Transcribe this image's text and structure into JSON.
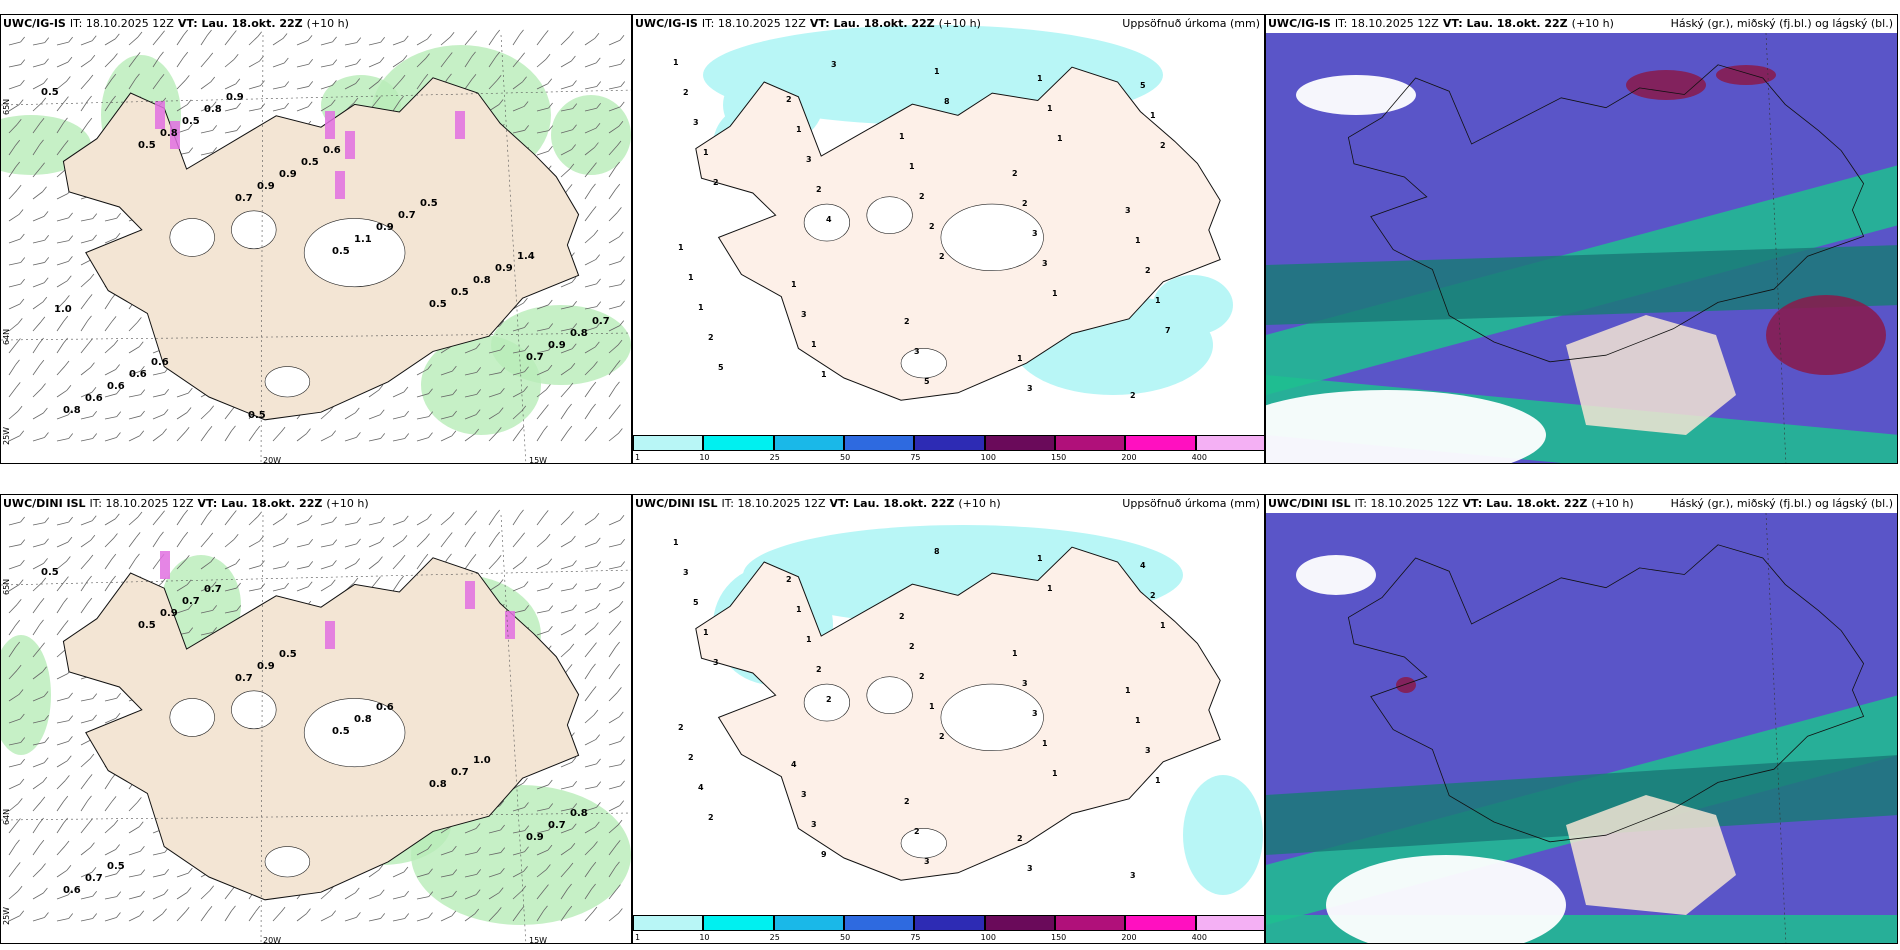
{
  "rows": [
    {
      "model": "UWC/IG-IS",
      "panels": [
        {
          "it_label": "IT: 18.10.2025 12Z",
          "vt_label": "VT: Lau. 18.okt. 22Z",
          "lead": "(+10 h)",
          "title": ""
        },
        {
          "it_label": "IT: 18.10.2025 12Z",
          "vt_label": "VT: Lau. 18.okt. 22Z",
          "lead": "(+10 h)",
          "title": "Uppsöfnuð úrkoma (mm)"
        },
        {
          "it_label": "IT: 18.10.2025 12Z",
          "vt_label": "VT: Lau. 18.okt. 22Z",
          "lead": "(+10 h)",
          "title": "Háský (gr.), miðský (fj.bl.) og lágský (bl.)"
        }
      ],
      "wind_labels": [
        "0.5",
        "0.5",
        "0.7",
        "0.5",
        "0.5",
        "0.7",
        "0.8",
        "0.8",
        "0.9",
        "1.1",
        "0.5",
        "0.9",
        "0.6",
        "0.5",
        "0.9",
        "0.9",
        "0.8",
        "0.8",
        "0.6",
        "0.8",
        "0.5",
        "0.7",
        "0.9",
        "0.7",
        "0.6",
        "0.9",
        "0.6",
        "0.5",
        "1.4",
        "1.0",
        "0.6",
        "0.5"
      ],
      "precip_labels": [
        "1",
        "2",
        "1",
        "2",
        "3",
        "1",
        "1",
        "2",
        "1",
        "2",
        "2",
        "1",
        "1",
        "2",
        "1",
        "1",
        "3",
        "3",
        "3",
        "5",
        "3",
        "3",
        "2",
        "3",
        "2",
        "1",
        "1",
        "5",
        "1",
        "1",
        "1",
        "2",
        "2",
        "3",
        "1",
        "2",
        "1",
        "1",
        "1",
        "2",
        "2",
        "4",
        "2",
        "1",
        "7",
        "5",
        "3",
        "8",
        "1"
      ]
    },
    {
      "model": "UWC/DINI ISL",
      "panels": [
        {
          "it_label": "IT: 18.10.2025 12Z",
          "vt_label": "VT: Lau. 18.okt. 22Z",
          "lead": "(+10 h)",
          "title": ""
        },
        {
          "it_label": "IT: 18.10.2025 12Z",
          "vt_label": "VT: Lau. 18.okt. 22Z",
          "lead": "(+10 h)",
          "title": "Uppsöfnuð úrkoma (mm)"
        },
        {
          "it_label": "IT: 18.10.2025 12Z",
          "vt_label": "VT: Lau. 18.okt. 22Z",
          "lead": "(+10 h)",
          "title": "Háský (gr.), miðský (fj.bl.) og lágský (bl.)"
        }
      ],
      "wind_labels": [
        "0.5",
        "0.5",
        "0.7",
        "0.5",
        "0.8",
        "0.9",
        "0.6",
        "0.9",
        "0.9",
        "0.8",
        "0.7",
        "0.7",
        "0.7",
        "0.7",
        "0.5",
        "0.6",
        "1.0",
        "0.8",
        "0.5",
        "0.7"
      ],
      "precip_labels": [
        "1",
        "2",
        "2",
        "1",
        "1",
        "2",
        "4",
        "2",
        "2",
        "3",
        "3",
        "1",
        "2",
        "3",
        "1",
        "2",
        "3",
        "2",
        "3",
        "4",
        "5",
        "1",
        "2",
        "3",
        "3",
        "4",
        "3",
        "3",
        "1",
        "2",
        "1",
        "2",
        "1",
        "1",
        "1",
        "2",
        "9",
        "8",
        "1",
        "1",
        "3",
        "2",
        "2",
        "1"
      ]
    }
  ],
  "axis_labels": {
    "lat65": "65N",
    "lat64": "64N",
    "lon25": "25W",
    "lon20": "20W",
    "lon15": "15W"
  },
  "colorbar": {
    "ticks": [
      "1",
      "10",
      "25",
      "50",
      "75",
      "100",
      "150",
      "200",
      "400"
    ],
    "colors": [
      "#b8f6f6",
      "#00f0f0",
      "#1ab8e8",
      "#2e6ae0",
      "#2d2bb4",
      "#6a0a5a",
      "#b0107a",
      "#ff10c0",
      "#f4b0f4"
    ]
  },
  "colors": {
    "land": "#f3e5d4",
    "land_precip": "#fdf0e8",
    "precip_light": "#b8f6f6",
    "wind_precip": "#b8ecb8",
    "cloud_high": "#5a55c8",
    "cloud_mid": "#1fbf8f",
    "cloud_low": "#1b7a78",
    "cloud_deep": "#8a1a4a"
  }
}
